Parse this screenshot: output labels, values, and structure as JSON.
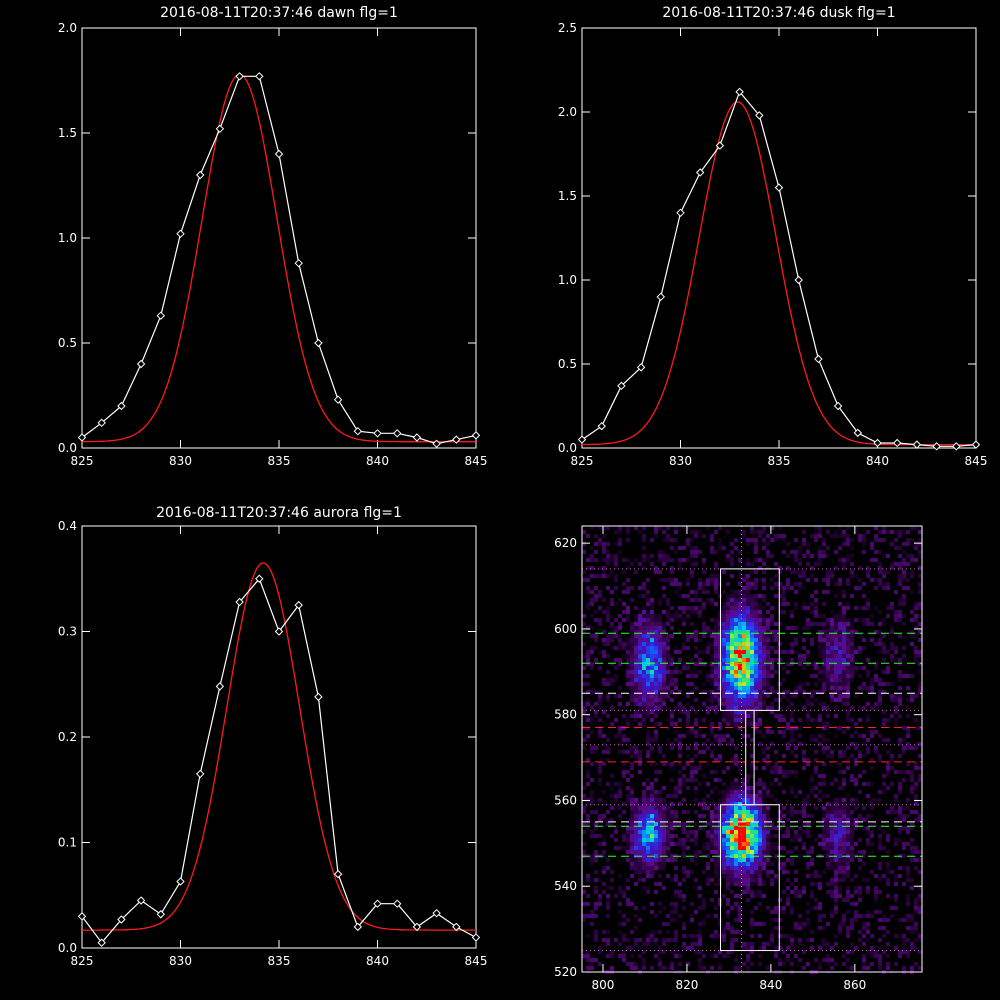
{
  "colors": {
    "background": "#000000",
    "axes": "#ffffff",
    "observed": "#ffffff",
    "fit": "#ff1a1a",
    "guide_green": "#33ff33",
    "guide_red": "#ff2222",
    "guide_white": "#ffffff",
    "guide_dotted": "#cc66cc"
  },
  "chart_data": [
    {
      "type": "line",
      "title": "2016-08-11T20:37:46 dawn flg=1",
      "xlabel": "",
      "ylabel": "",
      "xlim": [
        825,
        845
      ],
      "ylim": [
        0,
        2.0
      ],
      "xticks": [
        "825",
        "830",
        "835",
        "840",
        "845"
      ],
      "yticks": [
        "0.0",
        "0.5",
        "1.0",
        "1.5",
        "2.0"
      ],
      "grid": false,
      "series": [
        {
          "role": "observed",
          "marker": "diamond",
          "x": [
            825,
            826,
            827,
            828,
            829,
            830,
            831,
            832,
            833,
            834,
            835,
            836,
            837,
            838,
            839,
            840,
            841,
            842,
            843,
            844,
            845
          ],
          "y": [
            0.05,
            0.12,
            0.2,
            0.4,
            0.63,
            1.02,
            1.3,
            1.52,
            1.77,
            1.77,
            1.4,
            0.88,
            0.5,
            0.23,
            0.08,
            0.07,
            0.07,
            0.05,
            0.02,
            0.04,
            0.06
          ]
        },
        {
          "role": "fit",
          "x": [
            825,
            845
          ],
          "y": [
            0,
            0
          ],
          "gauss": {
            "amp": 1.75,
            "mu": 833.0,
            "sigma": 1.9,
            "base": 0.03
          }
        }
      ]
    },
    {
      "type": "line",
      "title": "2016-08-11T20:37:46 dusk flg=1",
      "xlabel": "",
      "ylabel": "",
      "xlim": [
        825,
        845
      ],
      "ylim": [
        0,
        2.5
      ],
      "xticks": [
        "825",
        "830",
        "835",
        "840",
        "845"
      ],
      "yticks": [
        "0.0",
        "0.5",
        "1.0",
        "1.5",
        "2.0",
        "2.5"
      ],
      "grid": false,
      "series": [
        {
          "role": "observed",
          "marker": "diamond",
          "x": [
            825,
            826,
            827,
            828,
            829,
            830,
            831,
            832,
            833,
            834,
            835,
            836,
            837,
            838,
            839,
            840,
            841,
            842,
            843,
            844,
            845
          ],
          "y": [
            0.05,
            0.13,
            0.37,
            0.48,
            0.9,
            1.4,
            1.64,
            1.8,
            2.12,
            1.98,
            1.55,
            1.0,
            0.53,
            0.25,
            0.09,
            0.03,
            0.03,
            0.02,
            0.01,
            0.01,
            0.02
          ]
        },
        {
          "role": "fit",
          "x": [
            825,
            845
          ],
          "y": [
            0,
            0
          ],
          "gauss": {
            "amp": 2.04,
            "mu": 832.9,
            "sigma": 1.95,
            "base": 0.02
          }
        }
      ]
    },
    {
      "type": "line",
      "title": "2016-08-11T20:37:46 aurora flg=1",
      "xlabel": "",
      "ylabel": "",
      "xlim": [
        825,
        845
      ],
      "ylim": [
        0,
        0.4
      ],
      "xticks": [
        "825",
        "830",
        "835",
        "840",
        "845"
      ],
      "yticks": [
        "0.0",
        "0.1",
        "0.2",
        "0.3",
        "0.4"
      ],
      "grid": false,
      "series": [
        {
          "role": "observed",
          "marker": "diamond",
          "x": [
            825,
            826,
            827,
            828,
            829,
            830,
            831,
            832,
            833,
            834,
            835,
            836,
            837,
            838,
            839,
            840,
            841,
            842,
            843,
            844,
            845
          ],
          "y": [
            0.03,
            0.005,
            0.027,
            0.045,
            0.032,
            0.063,
            0.165,
            0.248,
            0.328,
            0.35,
            0.3,
            0.325,
            0.238,
            0.07,
            0.02,
            0.042,
            0.042,
            0.02,
            0.033,
            0.02,
            0.01
          ]
        },
        {
          "role": "fit",
          "x": [
            825,
            845
          ],
          "y": [
            0,
            0
          ],
          "gauss": {
            "amp": 0.348,
            "mu": 834.2,
            "sigma": 1.85,
            "base": 0.017
          }
        }
      ]
    },
    {
      "type": "heatmap",
      "title": "",
      "xlabel": "",
      "ylabel": "",
      "xlim": [
        795,
        876
      ],
      "ylim": [
        520,
        624
      ],
      "xticks": [
        "800",
        "820",
        "840",
        "860"
      ],
      "yticks": [
        "520",
        "540",
        "560",
        "580",
        "600",
        "620"
      ],
      "grid": false,
      "colormap": "rainbow-on-purple",
      "blobs": [
        {
          "x": 811,
          "y": 592,
          "sx": 2.5,
          "sy": 6,
          "amp": 0.45
        },
        {
          "x": 811,
          "y": 552,
          "sx": 2.5,
          "sy": 4.5,
          "amp": 0.5
        },
        {
          "x": 833,
          "y": 593,
          "sx": 3,
          "sy": 6.5,
          "amp": 0.9
        },
        {
          "x": 833,
          "y": 552,
          "sx": 3,
          "sy": 5,
          "amp": 1.0
        },
        {
          "x": 856,
          "y": 594,
          "sx": 2.5,
          "sy": 6,
          "amp": 0.18
        },
        {
          "x": 856,
          "y": 552,
          "sx": 2.5,
          "sy": 5,
          "amp": 0.18
        }
      ],
      "boxes": [
        {
          "x": [
            828,
            842
          ],
          "y": [
            581,
            614
          ]
        },
        {
          "x": [
            828,
            842
          ],
          "y": [
            525,
            559
          ]
        },
        {
          "x": [
            834,
            836
          ],
          "y": [
            559,
            581
          ]
        }
      ],
      "vertical_dotted_x": 833,
      "hlines": [
        {
          "y": 614,
          "style": "dotted"
        },
        {
          "y": 599,
          "style": "dashed-green"
        },
        {
          "y": 592,
          "style": "dashed-green"
        },
        {
          "y": 585,
          "style": "dashed-white"
        },
        {
          "y": 581,
          "style": "dotted"
        },
        {
          "y": 577,
          "style": "dashed-red"
        },
        {
          "y": 573,
          "style": "dotted"
        },
        {
          "y": 569,
          "style": "dashed-red"
        },
        {
          "y": 559,
          "style": "dotted"
        },
        {
          "y": 555,
          "style": "dashed-white"
        },
        {
          "y": 554,
          "style": "dashed-green"
        },
        {
          "y": 547,
          "style": "dashed-green"
        },
        {
          "y": 525,
          "style": "dotted"
        }
      ]
    }
  ]
}
